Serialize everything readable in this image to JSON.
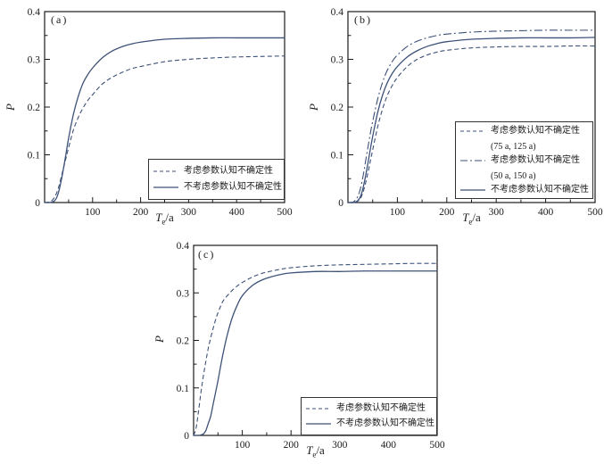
{
  "figure": {
    "line_color": "#3d5278",
    "frame_color": "#1a1a1a",
    "text_color": "#1a1a1a",
    "background": "#ffffff"
  },
  "chart_data": [
    {
      "type": "line",
      "panel_label": "(a)",
      "ylabel": "P",
      "xlabel_parts": {
        "main": "T",
        "sub": "e",
        "unit": "/a"
      },
      "xlim": [
        0,
        500
      ],
      "ylim": [
        0,
        0.4
      ],
      "xticks": [
        100,
        200,
        300,
        400,
        500
      ],
      "xticks_minor": [
        50,
        150,
        250,
        350,
        450
      ],
      "yticks": [
        0,
        0.1,
        0.2,
        0.3,
        0.4
      ],
      "ytick_labels": [
        "0",
        "0.1",
        "0.2",
        "0.3",
        "0.4"
      ],
      "legend_position": "lower right",
      "grid": false,
      "series": [
        {
          "name": "考虑参数认知不确定性",
          "style": "dashed",
          "x": [
            0,
            10,
            15,
            20,
            25,
            30,
            35,
            40,
            45,
            50,
            60,
            70,
            80,
            90,
            100,
            120,
            140,
            160,
            180,
            200,
            250,
            300,
            350,
            400,
            450,
            500
          ],
          "y": [
            0,
            0.001,
            0.004,
            0.01,
            0.02,
            0.035,
            0.055,
            0.075,
            0.095,
            0.115,
            0.152,
            0.178,
            0.198,
            0.214,
            0.226,
            0.248,
            0.262,
            0.272,
            0.28,
            0.285,
            0.295,
            0.3,
            0.303,
            0.305,
            0.306,
            0.307
          ]
        },
        {
          "name": "不考虑参数认知不确定性",
          "style": "solid",
          "x": [
            0,
            10,
            15,
            20,
            25,
            30,
            35,
            40,
            45,
            50,
            60,
            70,
            80,
            90,
            100,
            120,
            140,
            160,
            180,
            200,
            250,
            300,
            350,
            400,
            450,
            500
          ],
          "y": [
            0,
            0,
            0.001,
            0.003,
            0.01,
            0.025,
            0.048,
            0.075,
            0.105,
            0.135,
            0.185,
            0.222,
            0.25,
            0.268,
            0.282,
            0.303,
            0.317,
            0.326,
            0.332,
            0.336,
            0.342,
            0.344,
            0.345,
            0.345,
            0.345,
            0.345
          ]
        }
      ]
    },
    {
      "type": "line",
      "panel_label": "(b)",
      "ylabel": "P",
      "xlabel_parts": {
        "main": "T",
        "sub": "e",
        "unit": "/a"
      },
      "xlim": [
        0,
        500
      ],
      "ylim": [
        0,
        0.4
      ],
      "xticks": [
        100,
        200,
        300,
        400,
        500
      ],
      "xticks_minor": [
        50,
        150,
        250,
        350,
        450
      ],
      "yticks": [
        0,
        0.1,
        0.2,
        0.3,
        0.4
      ],
      "ytick_labels": [
        "0",
        "0.1",
        "0.2",
        "0.3",
        "0.4"
      ],
      "legend_position": "lower right",
      "grid": false,
      "series": [
        {
          "name": "考虑参数认知不确定性",
          "sub": "(75 a, 125 a)",
          "style": "dashed",
          "x": [
            0,
            10,
            15,
            20,
            25,
            30,
            35,
            40,
            45,
            50,
            60,
            70,
            80,
            90,
            100,
            120,
            140,
            160,
            180,
            200,
            250,
            300,
            350,
            400,
            450,
            500
          ],
          "y": [
            0,
            0,
            0.001,
            0.003,
            0.008,
            0.02,
            0.038,
            0.06,
            0.085,
            0.11,
            0.158,
            0.196,
            0.225,
            0.246,
            0.262,
            0.285,
            0.3,
            0.309,
            0.315,
            0.319,
            0.324,
            0.326,
            0.327,
            0.327,
            0.328,
            0.328
          ]
        },
        {
          "name": "考虑参数认知不确定性",
          "sub": "(50 a, 150 a)",
          "style": "dashdot",
          "x": [
            0,
            10,
            15,
            20,
            25,
            30,
            35,
            40,
            45,
            50,
            60,
            70,
            80,
            90,
            100,
            120,
            140,
            160,
            180,
            200,
            250,
            300,
            350,
            400,
            450,
            500
          ],
          "y": [
            0,
            0.001,
            0.005,
            0.013,
            0.028,
            0.052,
            0.082,
            0.113,
            0.143,
            0.17,
            0.216,
            0.252,
            0.278,
            0.296,
            0.309,
            0.327,
            0.338,
            0.345,
            0.35,
            0.353,
            0.357,
            0.359,
            0.36,
            0.361,
            0.361,
            0.361
          ]
        },
        {
          "name": "不考虑参数认知不确定性",
          "style": "solid",
          "x": [
            0,
            10,
            15,
            20,
            25,
            30,
            35,
            40,
            45,
            50,
            60,
            70,
            80,
            90,
            100,
            120,
            140,
            160,
            180,
            200,
            250,
            300,
            350,
            400,
            450,
            500
          ],
          "y": [
            0,
            0,
            0.001,
            0.004,
            0.012,
            0.028,
            0.052,
            0.08,
            0.11,
            0.138,
            0.188,
            0.225,
            0.252,
            0.271,
            0.285,
            0.305,
            0.318,
            0.327,
            0.333,
            0.337,
            0.342,
            0.344,
            0.345,
            0.345,
            0.345,
            0.346
          ]
        }
      ]
    },
    {
      "type": "line",
      "panel_label": "(c)",
      "ylabel": "P",
      "xlabel_parts": {
        "main": "T",
        "sub": "e",
        "unit": "/a"
      },
      "xlim": [
        0,
        500
      ],
      "ylim": [
        0,
        0.4
      ],
      "xticks": [
        100,
        200,
        300,
        400,
        500
      ],
      "xticks_minor": [
        50,
        150,
        250,
        350,
        450
      ],
      "yticks": [
        0,
        0.1,
        0.2,
        0.3,
        0.4
      ],
      "ytick_labels": [
        "0",
        "0.1",
        "0.2",
        "0.3",
        "0.4"
      ],
      "legend_position": "lower right",
      "grid": false,
      "series": [
        {
          "name": "考虑参数认知不确定性",
          "style": "dashed",
          "x": [
            0,
            5,
            10,
            15,
            20,
            25,
            30,
            35,
            40,
            45,
            50,
            60,
            70,
            80,
            90,
            100,
            120,
            140,
            160,
            180,
            200,
            250,
            300,
            350,
            400,
            450,
            500
          ],
          "y": [
            0,
            0.015,
            0.05,
            0.09,
            0.125,
            0.155,
            0.183,
            0.205,
            0.225,
            0.243,
            0.258,
            0.282,
            0.295,
            0.306,
            0.315,
            0.322,
            0.333,
            0.341,
            0.346,
            0.35,
            0.353,
            0.357,
            0.359,
            0.36,
            0.361,
            0.362,
            0.362
          ]
        },
        {
          "name": "不考虑参数认知不确定性",
          "style": "solid",
          "x": [
            0,
            5,
            10,
            15,
            20,
            25,
            30,
            35,
            40,
            45,
            50,
            60,
            70,
            80,
            90,
            100,
            120,
            140,
            160,
            180,
            200,
            250,
            300,
            350,
            400,
            450,
            500
          ],
          "y": [
            0,
            0,
            0,
            0.001,
            0.003,
            0.01,
            0.025,
            0.04,
            0.065,
            0.09,
            0.115,
            0.17,
            0.215,
            0.25,
            0.275,
            0.294,
            0.315,
            0.327,
            0.334,
            0.339,
            0.342,
            0.345,
            0.345,
            0.346,
            0.346,
            0.346,
            0.346
          ]
        }
      ]
    }
  ]
}
